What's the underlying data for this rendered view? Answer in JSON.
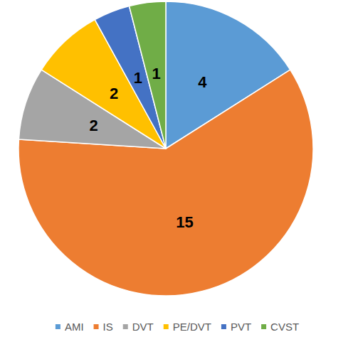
{
  "chart_data": {
    "type": "pie",
    "categories": [
      "AMI",
      "IS",
      "DVT",
      "PE/DVT",
      "PVT",
      "CVST"
    ],
    "values": [
      4,
      15,
      2,
      2,
      1,
      1
    ],
    "colors": [
      "#5b9bd5",
      "#ed7d31",
      "#a5a5a5",
      "#ffc000",
      "#4472c4",
      "#70ad47"
    ],
    "legend": "bottom",
    "data_labels": true
  }
}
